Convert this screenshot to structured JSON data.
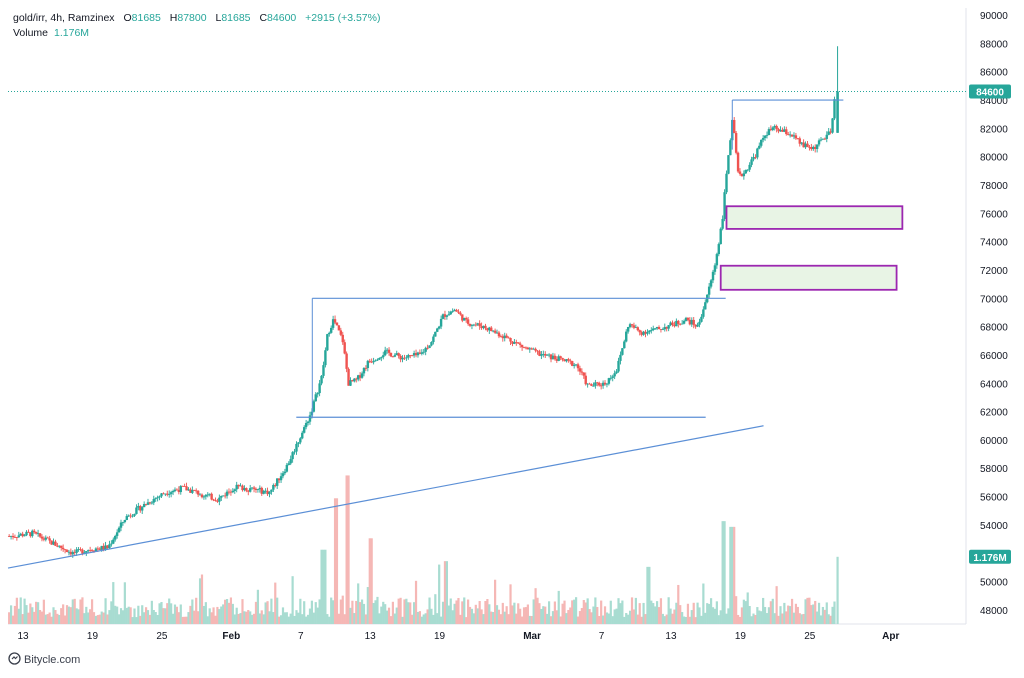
{
  "header": {
    "symbol": "gold/irr, 4h, Ramzinex",
    "open_label": "O",
    "open": "81685",
    "high_label": "H",
    "high": "87800",
    "low_label": "L",
    "low": "81685",
    "close_label": "C",
    "close": "84600",
    "change": "+2915 (+3.57%)",
    "volume_label": "Volume",
    "volume": "1.176M"
  },
  "footer": {
    "brand": "Bitycle.com"
  },
  "colors": {
    "up": "#26a69a",
    "down": "#ef5350",
    "vol_up": "#a8dcd1",
    "vol_down": "#f5b7b5",
    "trendline": "#5b8fd6",
    "zone_fill": "#e4f2e0",
    "zone_border": "#9c27b0",
    "last_price": "#26a69a"
  },
  "chart_data": {
    "type": "candlestick",
    "symbol": "gold/irr",
    "timeframe": "4h",
    "exchange": "Ramzinex",
    "ylim": [
      47000,
      90500
    ],
    "y_ticks": [
      48000,
      50000,
      52000,
      54000,
      56000,
      58000,
      60000,
      62000,
      64000,
      66000,
      68000,
      70000,
      72000,
      74000,
      76000,
      78000,
      80000,
      82000,
      84000,
      86000,
      88000,
      90000
    ],
    "y_tick_labels": [
      "48000",
      "50000",
      "52000",
      "54000",
      "56000",
      "58000",
      "60000",
      "62000",
      "64000",
      "66000",
      "68000",
      "70000",
      "72000",
      "74000",
      "76000",
      "78000",
      "80000",
      "82000",
      "84000",
      "86000",
      "88000",
      "90000"
    ],
    "x_ticks": [
      {
        "day": 13,
        "label": "13"
      },
      {
        "day": 19,
        "label": "19"
      },
      {
        "day": 25,
        "label": "25"
      },
      {
        "day": 31,
        "label": "Feb"
      },
      {
        "day": 37,
        "label": "7"
      },
      {
        "day": 43,
        "label": "13"
      },
      {
        "day": 49,
        "label": "19"
      },
      {
        "day": 57,
        "label": "Mar"
      },
      {
        "day": 63,
        "label": "7"
      },
      {
        "day": 69,
        "label": "13"
      },
      {
        "day": 75,
        "label": "19"
      },
      {
        "day": 81,
        "label": "25"
      },
      {
        "day": 88,
        "label": "Apr"
      }
    ],
    "x_unit": "days since Jan 1",
    "x_range": [
      11.7,
      94.5
    ],
    "price_path": [
      [
        12,
        53200
      ],
      [
        14,
        53400
      ],
      [
        16,
        52600
      ],
      [
        17.5,
        52000
      ],
      [
        19,
        52300
      ],
      [
        20.5,
        52400
      ],
      [
        22,
        54500
      ],
      [
        24,
        55600
      ],
      [
        25.5,
        56300
      ],
      [
        27,
        56600
      ],
      [
        28.5,
        56200
      ],
      [
        30,
        55800
      ],
      [
        31.5,
        56700
      ],
      [
        33,
        56500
      ],
      [
        34.5,
        56300
      ],
      [
        36,
        58200
      ],
      [
        37,
        60000
      ],
      [
        38,
        61800
      ],
      [
        39,
        64500
      ],
      [
        39.5,
        67500
      ],
      [
        40,
        68500
      ],
      [
        40.8,
        67000
      ],
      [
        41.3,
        64000
      ],
      [
        42,
        64200
      ],
      [
        43,
        65500
      ],
      [
        44.5,
        66200
      ],
      [
        46,
        65800
      ],
      [
        47.5,
        66000
      ],
      [
        48.5,
        67000
      ],
      [
        49.5,
        68800
      ],
      [
        50.5,
        69200
      ],
      [
        51.5,
        68300
      ],
      [
        53,
        68000
      ],
      [
        55,
        67200
      ],
      [
        56.5,
        66500
      ],
      [
        58,
        66000
      ],
      [
        59.5,
        65700
      ],
      [
        61,
        65300
      ],
      [
        62,
        63800
      ],
      [
        63.5,
        64000
      ],
      [
        64.5,
        65000
      ],
      [
        65.5,
        68200
      ],
      [
        66.5,
        67600
      ],
      [
        68,
        67800
      ],
      [
        69.5,
        68200
      ],
      [
        70.5,
        68500
      ],
      [
        71.5,
        68000
      ],
      [
        72.5,
        70800
      ],
      [
        73,
        72500
      ],
      [
        73.6,
        75500
      ],
      [
        74.1,
        80000
      ],
      [
        74.5,
        82600
      ],
      [
        75,
        78500
      ],
      [
        75.6,
        79000
      ],
      [
        76.5,
        80200
      ],
      [
        77.3,
        81600
      ],
      [
        78,
        82000
      ],
      [
        79.5,
        81600
      ],
      [
        80.5,
        80800
      ],
      [
        81.5,
        80600
      ],
      [
        82.5,
        81400
      ],
      [
        83,
        81700
      ],
      [
        83.4,
        84600
      ]
    ],
    "last_candle": {
      "open": 81685,
      "high": 87800,
      "low": 81685,
      "close": 84600
    },
    "last_price": 84600,
    "last_price_label": "84600",
    "volume_last": 1.176,
    "volume_last_label": "1.176M",
    "volume_unit": "M",
    "volume_scale_max": 2.8,
    "volume_spikes": [
      {
        "day": 40,
        "value": 2.2
      },
      {
        "day": 41,
        "value": 2.6
      },
      {
        "day": 43,
        "value": 1.5
      },
      {
        "day": 49.5,
        "value": 1.1
      },
      {
        "day": 73.5,
        "value": 1.8
      },
      {
        "day": 74.3,
        "value": 1.7
      },
      {
        "day": 39,
        "value": 1.3
      },
      {
        "day": 67,
        "value": 1.0
      },
      {
        "day": 83.4,
        "value": 1.176
      }
    ],
    "annotations": {
      "trendline": {
        "from": {
          "day": 11.7,
          "price": 50950
        },
        "to": {
          "day": 77,
          "price": 61000
        }
      },
      "range_box": {
        "day_from": 38,
        "day_to": 72,
        "top": 70000,
        "bottom": 61600
      },
      "high_box": {
        "day_from": 74.3,
        "day_to": 83.9,
        "top": 84000
      },
      "zones": [
        {
          "day_from": 73.8,
          "day_to": 89,
          "top": 76500,
          "bottom": 74900
        },
        {
          "day_from": 73.3,
          "day_to": 88.5,
          "top": 72300,
          "bottom": 70600
        }
      ]
    }
  }
}
